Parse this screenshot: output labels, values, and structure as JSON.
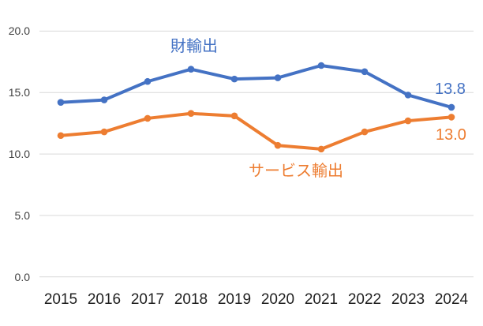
{
  "chart_data": {
    "type": "line",
    "x": [
      "2015",
      "2016",
      "2017",
      "2018",
      "2019",
      "2020",
      "2021",
      "2022",
      "2023",
      "2024"
    ],
    "yticks": [
      "20.0",
      "15.0",
      "10.0",
      "5.0",
      "0.0"
    ],
    "ytick_values": [
      20,
      15,
      10,
      5,
      0
    ],
    "ylim": [
      0,
      20
    ],
    "grid": "horizontal-only",
    "legend_position": "inline-labels-near-lines",
    "series": [
      {
        "name": "財輸出",
        "color": "#4472C4",
        "values": [
          14.2,
          14.4,
          15.9,
          16.9,
          16.1,
          16.2,
          17.2,
          16.7,
          14.8,
          13.8
        ],
        "end_label": "13.8"
      },
      {
        "name": "サービス輸出",
        "color": "#ED7D31",
        "values": [
          11.5,
          11.8,
          12.9,
          13.3,
          13.1,
          10.7,
          10.4,
          11.8,
          12.7,
          13.0
        ],
        "end_label": "13.0"
      }
    ]
  },
  "colors": {
    "gridline": "#D9D9D9",
    "y_axis_text": "#404040",
    "x_axis_text": "#1F1F1F",
    "background": "#FFFFFF"
  }
}
